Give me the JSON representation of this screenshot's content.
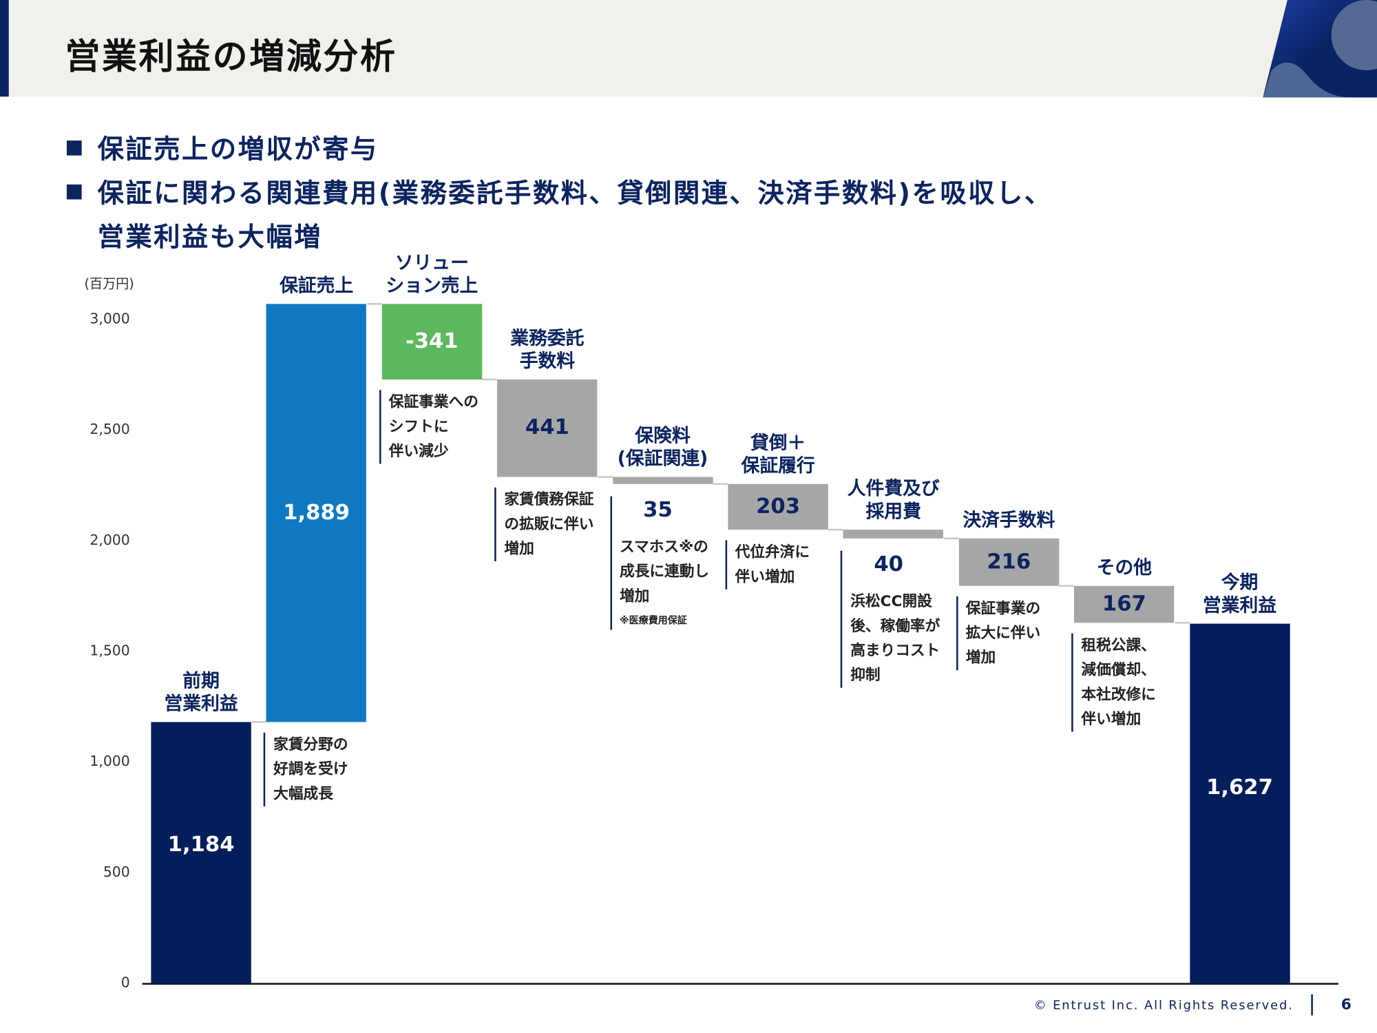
{
  "title": "営業利益の増減分析",
  "bullets": [
    "保証売上の増収が寄与",
    "保証に関わる関連費用(業務委託手数料、貸倒関連、決済手数料)を吸収し、",
    "営業利益も大幅増"
  ],
  "footer": {
    "copyright": "© Entrust Inc. All Rights Reserved.",
    "page": "6"
  },
  "colors": {
    "navy": "#041e5c",
    "blue": "#0f7ac3",
    "green": "#5cb85c",
    "gray": "#a6a6a6"
  },
  "chart_data": {
    "type": "bar",
    "subtype": "waterfall",
    "ylabel": "(百万円)",
    "ylim": [
      0,
      3000
    ],
    "yticks": [
      {
        "v": 0,
        "label": "0"
      },
      {
        "v": 500,
        "label": "500"
      },
      {
        "v": 1000,
        "label": "1,000"
      },
      {
        "v": 1500,
        "label": "1,500"
      },
      {
        "v": 2000,
        "label": "2,000"
      },
      {
        "v": 2500,
        "label": "2,500"
      },
      {
        "v": 3000,
        "label": "3,000"
      }
    ],
    "items": [
      {
        "name": "前期\n営業利益",
        "value": 1184,
        "label": "1,184",
        "kind": "total",
        "color": "navy",
        "note": []
      },
      {
        "name": "保証売上",
        "value": 1889,
        "label": "1,889",
        "kind": "delta",
        "color": "blue",
        "note": [
          "家賃分野の",
          "好調を受け",
          "大幅成長"
        ]
      },
      {
        "name": "ソリュー\nション売上",
        "value": -341,
        "label": "-341",
        "kind": "delta",
        "color": "green",
        "note": [
          "保証事業への",
          "シフトに",
          "伴い減少"
        ]
      },
      {
        "name": "業務委託\n手数料",
        "value": -441,
        "label": "441",
        "kind": "delta",
        "color": "gray",
        "note": [
          "家賃債務保証",
          "の拡販に伴い",
          "増加"
        ]
      },
      {
        "name": "保険料\n(保証関連)",
        "value": -35,
        "label": "35",
        "kind": "delta",
        "color": "gray",
        "note": [
          "スマホス※の",
          "成長に連動し",
          "増加"
        ],
        "footnote": "※医療費用保証"
      },
      {
        "name": "貸倒＋\n保証履行",
        "value": -203,
        "label": "203",
        "kind": "delta",
        "color": "gray",
        "note": [
          "代位弁済に",
          "伴い増加"
        ]
      },
      {
        "name": "人件費及び\n採用費",
        "value": -40,
        "label": "40",
        "kind": "delta",
        "color": "gray",
        "note": [
          "浜松CC開設",
          "後、稼働率が",
          "高まりコスト",
          "抑制"
        ]
      },
      {
        "name": "決済手数料",
        "value": -216,
        "label": "216",
        "kind": "delta",
        "color": "gray",
        "note": [
          "保証事業の",
          "拡大に伴い",
          "増加"
        ]
      },
      {
        "name": "その他",
        "value": -167,
        "label": "167",
        "kind": "delta",
        "color": "gray",
        "note": [
          "租税公課、",
          "減価償却、",
          "本社改修に",
          "伴い増加"
        ]
      },
      {
        "name": "今期\n営業利益",
        "value": 1627,
        "label": "1,627",
        "kind": "total",
        "color": "navy",
        "note": []
      }
    ]
  }
}
